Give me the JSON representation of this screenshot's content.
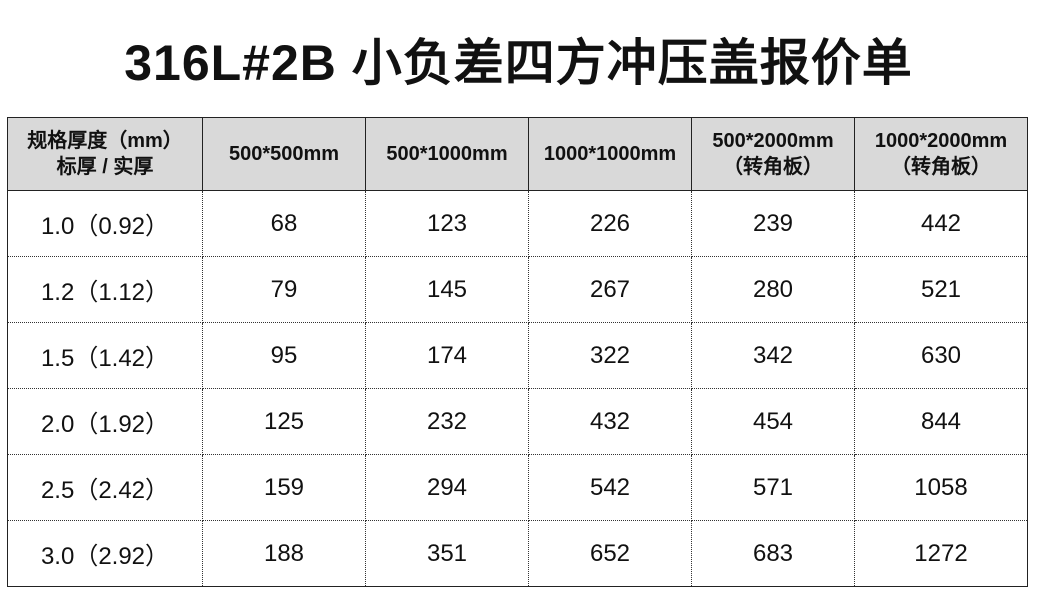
{
  "title": "316L#2B 小负差四方冲压盖报价单",
  "headers": [
    {
      "line1": "规格厚度（mm）",
      "line2": "标厚 / 实厚"
    },
    {
      "line1": "500*500mm",
      "line2": ""
    },
    {
      "line1": "500*1000mm",
      "line2": ""
    },
    {
      "line1": "1000*1000mm",
      "line2": ""
    },
    {
      "line1": "500*2000mm",
      "line2": "（转角板）"
    },
    {
      "line1": "1000*2000mm",
      "line2": "（转角板）"
    }
  ],
  "rows": [
    [
      "1.0（0.92）",
      "68",
      "123",
      "226",
      "239",
      "442"
    ],
    [
      "1.2（1.12）",
      "79",
      "145",
      "267",
      "280",
      "521"
    ],
    [
      "1.5（1.42）",
      "95",
      "174",
      "322",
      "342",
      "630"
    ],
    [
      "2.0（1.92）",
      "125",
      "232",
      "432",
      "454",
      "844"
    ],
    [
      "2.5（2.42）",
      "159",
      "294",
      "542",
      "571",
      "1058"
    ],
    [
      "3.0（2.92）",
      "188",
      "351",
      "652",
      "683",
      "1272"
    ]
  ],
  "colors": {
    "header_bg": "#d9d9d9",
    "border": "#222222"
  }
}
